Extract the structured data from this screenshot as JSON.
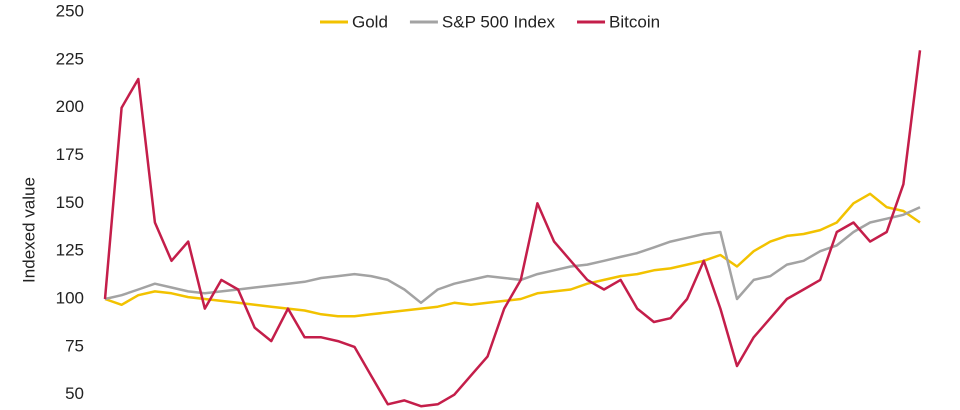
{
  "chart_data": {
    "type": "line",
    "y_label": "Indexed value",
    "categories": [
      null,
      null,
      null,
      null,
      null,
      null,
      null,
      null,
      null,
      null,
      null,
      null,
      null,
      null,
      null,
      null,
      null,
      null,
      null,
      null,
      null,
      null,
      null,
      null,
      null,
      null,
      null,
      null,
      null,
      null,
      null,
      null,
      null,
      null,
      null,
      null,
      null,
      null,
      null,
      null,
      null,
      null,
      null,
      null,
      null,
      null,
      null,
      null,
      null,
      null
    ],
    "series": [
      {
        "name": "Gold",
        "color": "#f2c200",
        "values": [
          100,
          97,
          102,
          104,
          103,
          101,
          100,
          99,
          98,
          97,
          96,
          95,
          94,
          92,
          91,
          91,
          92,
          93,
          94,
          95,
          96,
          98,
          97,
          98,
          99,
          100,
          103,
          104,
          105,
          108,
          110,
          112,
          113,
          115,
          116,
          118,
          120,
          123,
          117,
          125,
          130,
          133,
          134,
          136,
          140,
          150,
          155,
          148,
          146,
          140
        ]
      },
      {
        "name": "S&P 500 Index",
        "color": "#a3a3a3",
        "values": [
          100,
          102,
          105,
          108,
          106,
          104,
          103,
          104,
          105,
          106,
          107,
          108,
          109,
          111,
          112,
          113,
          112,
          110,
          105,
          98,
          105,
          108,
          110,
          112,
          111,
          110,
          113,
          115,
          117,
          118,
          120,
          122,
          124,
          127,
          130,
          132,
          134,
          135,
          100,
          110,
          112,
          118,
          120,
          125,
          128,
          135,
          140,
          142,
          144,
          148
        ]
      },
      {
        "name": "Bitcoin",
        "color": "#c41e4a",
        "values": [
          100,
          200,
          215,
          140,
          120,
          130,
          95,
          110,
          105,
          85,
          78,
          95,
          80,
          80,
          78,
          75,
          60,
          45,
          47,
          44,
          45,
          50,
          60,
          70,
          95,
          110,
          150,
          130,
          120,
          110,
          105,
          110,
          95,
          88,
          90,
          100,
          120,
          95,
          65,
          80,
          90,
          100,
          105,
          110,
          135,
          140,
          130,
          135,
          160,
          230
        ]
      }
    ],
    "ylim": [
      42,
      250
    ],
    "yticks": [
      50,
      75,
      100,
      125,
      150,
      175,
      200,
      225,
      250
    ],
    "legend": "top"
  }
}
